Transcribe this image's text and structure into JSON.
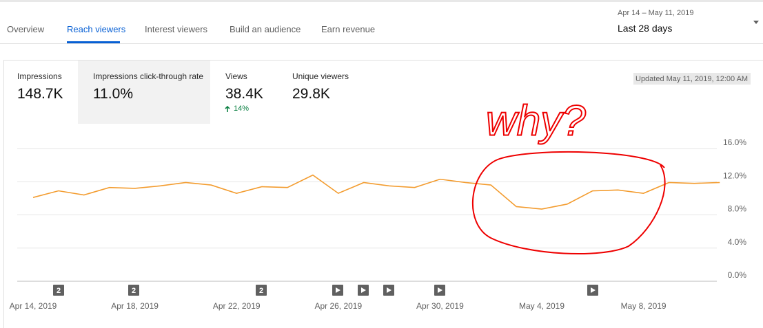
{
  "tabs": [
    "Overview",
    "Reach viewers",
    "Interest viewers",
    "Build an audience",
    "Earn revenue"
  ],
  "date_range": {
    "period": "Apr 14 – May 11, 2019",
    "label": "Last 28 days"
  },
  "metrics": [
    {
      "label": "Impressions",
      "value": "148.7K"
    },
    {
      "label": "Impressions click-through rate",
      "value": "11.0%"
    },
    {
      "label": "Views",
      "value": "38.4K",
      "change": "14%"
    },
    {
      "label": "Unique viewers",
      "value": "29.8K"
    }
  ],
  "updated": "Updated May 11, 2019, 12:00 AM",
  "handwritten": "why?",
  "chart_data": {
    "type": "line",
    "categories": [
      "Apr 14, 2019",
      null,
      null,
      null,
      "Apr 18, 2019",
      null,
      null,
      null,
      "Apr 22, 2019",
      null,
      null,
      null,
      "Apr 26, 2019",
      null,
      null,
      null,
      "Apr 30, 2019",
      null,
      null,
      null,
      "May 4, 2019",
      null,
      null,
      null,
      "May 8, 2019",
      null,
      null,
      null
    ],
    "values": [
      10.1,
      10.9,
      10.4,
      11.3,
      11.2,
      11.5,
      11.9,
      11.6,
      10.6,
      11.4,
      11.3,
      12.8,
      10.6,
      11.9,
      11.5,
      11.3,
      12.3,
      11.9,
      11.6,
      9.0,
      8.7,
      9.3,
      10.9,
      11.0,
      10.6,
      11.9,
      11.8,
      11.9
    ],
    "color": "#f39c2f",
    "ylim": [
      0,
      16
    ],
    "yticks": [
      {
        "value": 0,
        "label": "0.0%"
      },
      {
        "value": 4,
        "label": "4.0%"
      },
      {
        "value": 8,
        "label": "8.0%"
      },
      {
        "value": 12,
        "label": "12.0%"
      },
      {
        "value": 16,
        "label": "16.0%"
      }
    ],
    "grid": true,
    "annotations": [
      "2",
      "2",
      "2"
    ]
  }
}
